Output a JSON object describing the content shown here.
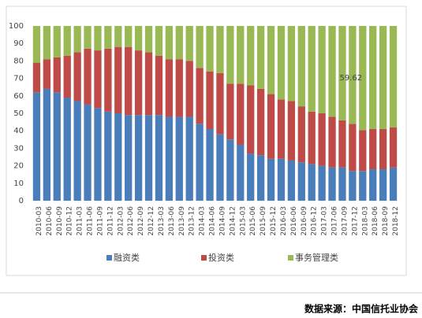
{
  "chart_data": {
    "type": "stacked_bar",
    "categories": [
      "2010-03",
      "2010-06",
      "2010-09",
      "2010-12",
      "2011-03",
      "2011-06",
      "2011-09",
      "2011-12",
      "2012-03",
      "2012-06",
      "2012-09",
      "2012-12",
      "2013-03",
      "2013-06",
      "2013-09",
      "2013-12",
      "2014-03",
      "2014-06",
      "2014-09",
      "2014-12",
      "2015-03",
      "2015-06",
      "2015-09",
      "2015-12",
      "2016-03",
      "2016-06",
      "2016-09",
      "2016-12",
      "2017-03",
      "2017-06",
      "2017-09",
      "2017-12",
      "2018-03",
      "2018-06",
      "2018-09",
      "2018-12"
    ],
    "series": [
      {
        "name": "融资类",
        "color": "#4a7ebb",
        "values": [
          62,
          64,
          62,
          59,
          57,
          55,
          53,
          51,
          50,
          49,
          49,
          49,
          49,
          48,
          48,
          48,
          44,
          41,
          38,
          35,
          32,
          27,
          26,
          24,
          24,
          23,
          22,
          21,
          20,
          19,
          19,
          17,
          17,
          18,
          18,
          19
        ]
      },
      {
        "name": "投资类",
        "color": "#be4b48",
        "values": [
          17,
          17,
          20,
          24,
          28,
          32,
          33,
          36,
          38,
          39,
          37,
          36,
          34,
          33,
          33,
          32,
          32,
          33,
          35,
          32,
          35,
          39,
          38,
          37,
          34,
          34,
          32,
          30,
          30,
          29,
          27,
          27,
          23.38,
          23,
          23,
          23
        ]
      },
      {
        "name": "事务管理类",
        "color": "#98b954",
        "values": [
          21,
          19,
          18,
          17,
          15,
          13,
          14,
          13,
          12,
          12,
          14,
          15,
          17,
          19,
          19,
          20,
          24,
          26,
          27,
          33,
          33,
          34,
          36,
          39,
          42,
          43,
          46,
          49,
          50,
          52,
          54,
          56,
          59.62,
          59,
          59,
          58
        ],
        "value_labels": [
          null,
          null,
          null,
          null,
          null,
          null,
          null,
          null,
          null,
          null,
          null,
          null,
          null,
          null,
          null,
          null,
          null,
          null,
          null,
          null,
          null,
          null,
          null,
          null,
          null,
          null,
          null,
          null,
          null,
          null,
          null,
          null,
          "59.62",
          null,
          null,
          null
        ]
      }
    ],
    "ylim": [
      0,
      100
    ],
    "yticks": [
      0,
      10,
      20,
      30,
      40,
      50,
      60,
      70,
      80,
      90,
      100
    ],
    "grid": false,
    "legend": "bottom",
    "source": "数据来源：中国信托业协会"
  }
}
